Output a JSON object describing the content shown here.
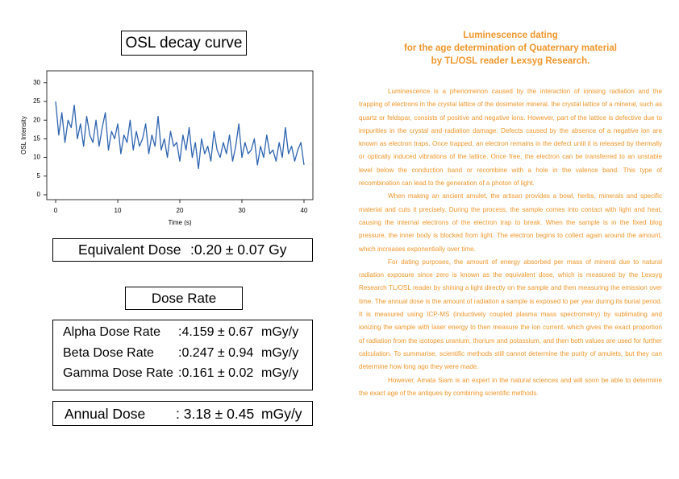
{
  "chart_data": {
    "type": "line",
    "title": "OSL decay curve",
    "xlabel": "Time (s)",
    "ylabel": "OSL Intensity",
    "x": [
      0,
      0.5,
      1,
      1.5,
      2,
      2.5,
      3,
      3.5,
      4,
      4.5,
      5,
      5.5,
      6,
      6.5,
      7,
      7.5,
      8,
      8.5,
      9,
      9.5,
      10,
      10.5,
      11,
      11.5,
      12,
      12.5,
      13,
      13.5,
      14,
      14.5,
      15,
      15.5,
      16,
      16.5,
      17,
      17.5,
      18,
      18.5,
      19,
      19.5,
      20,
      20.5,
      21,
      21.5,
      22,
      22.5,
      23,
      23.5,
      24,
      24.5,
      25,
      25.5,
      26,
      26.5,
      27,
      27.5,
      28,
      28.5,
      29,
      29.5,
      30,
      30.5,
      31,
      31.5,
      32,
      32.5,
      33,
      33.5,
      34,
      34.5,
      35,
      35.5,
      36,
      36.5,
      37,
      37.5,
      38,
      38.5,
      39,
      39.5,
      40
    ],
    "values": [
      25,
      16,
      22,
      14,
      20,
      18,
      24,
      15,
      19,
      13,
      21,
      16,
      14,
      20,
      13,
      18,
      22,
      12,
      17,
      15,
      19,
      11,
      16,
      14,
      20,
      12,
      17,
      13,
      15,
      19,
      11,
      16,
      13,
      21,
      12,
      15,
      10,
      17,
      13,
      14,
      9,
      16,
      12,
      18,
      10,
      14,
      7,
      15,
      11,
      13,
      9,
      17,
      12,
      10,
      14,
      11,
      16,
      9,
      13,
      19,
      10,
      14,
      11,
      12,
      15,
      8,
      13,
      10,
      16,
      11,
      12,
      9,
      14,
      10,
      18,
      11,
      13,
      9,
      12,
      14,
      8
    ],
    "color": "#2e64b0",
    "xlim": [
      -1.43,
      41.43
    ],
    "ylim": [
      -1.3,
      33.2
    ],
    "xticks": [
      0,
      10,
      20,
      30,
      40
    ],
    "yticks": [
      0,
      5,
      10,
      15,
      20,
      25,
      30
    ]
  },
  "results": {
    "equivalent_dose": {
      "label": "Equivalent Dose",
      "value": ":0.20 ± 0.07 Gy"
    },
    "dose_rate_title": "Dose Rate",
    "dose_rates": [
      {
        "label": "Alpha Dose Rate",
        "value": ":4.159 ± 0.67",
        "unit": "mGy/y"
      },
      {
        "label": "Beta Dose Rate",
        "value": ":0.247 ± 0.94",
        "unit": "mGy/y"
      },
      {
        "label": "Gamma Dose Rate",
        "value": ":0.161 ± 0.02",
        "unit": "mGy/y"
      }
    ],
    "annual_dose": {
      "label": "Annual Dose",
      "value": ": 3.18 ± 0.45",
      "unit": "mGy/y"
    }
  },
  "article": {
    "title": [
      "Luminescence dating",
      "for the age determination of Quaternary material",
      "by TL/OSL reader Lexsyg Research."
    ],
    "paragraphs": [
      "Luminescence is a phenomenon caused by the interaction of ionising radiation and the trapping of electrons in the crystal lattice of the dosimeter mineral. the crystal lattice of a mineral, such as quartz or feldspar, consists of positive and negative ions. However, part of the lattice is defective due to impurities in the crystal and radiation damage. Defects caused by the absence of a negative ion are known as electron traps. Once trapped, an electron remains in the defect until it is released by thermally or optically induced vibrations of the lattice. Once free, the electron can be transferred to an unstable level below the conduction band or recombine with a hole in the valence band. This type of recombination can lead to the generation of a photon of light.",
      "When making an ancient amulet, the artisan provides a bowl, herbs, minerals and specific material and cuts it precisely. During the process, the sample comes into contact with light and heat, causing the internal electrons of the electron trap to break. When the sample is in the fixed blog pressure, the inner body is blocked from light. The electron begins to collect again around the amount, which increases exponentially over time.",
      "For dating purposes, the amount of energy absorbed per mass of mineral due to natural radiation exposure since zero is known as the equivalent dose, which is measured by the Lexsyg Research TL/OSL reader by shining a light directly on the sample and then measuring the emission over time. The annual dose is the amount of radiation a sample is exposed to per year during its burial period. It is measured using ICP-MS (inductively coupled plasma mass spectrometry) by sublimating and ionizing the sample with laser energy to then measure the ion current, which gives the exact proportion of radiation from the isotopes uranium, thorium and potassium, and then both values are used for further calculation. To summarise, scientific methods still cannot determine the purity of amulets, but they can determine how long ago they were made.",
      "However, Amata Siam is an expert in the natural sciences and will soon be able to determine the exact age of the antiques by combining scientific methods."
    ]
  }
}
